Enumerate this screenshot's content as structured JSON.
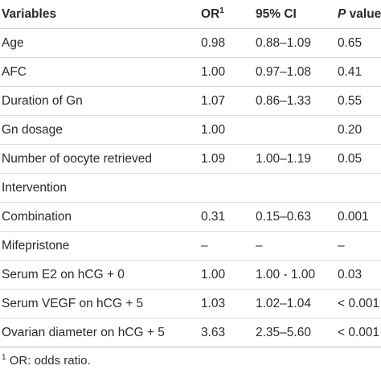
{
  "headers": {
    "variables": "Variables",
    "or": "OR",
    "or_sup": "1",
    "ci": "95% CI",
    "p_italic": "P",
    "p_rest": " value"
  },
  "rows": [
    {
      "variable": "Age",
      "or": "0.98",
      "ci": "0.88–1.09",
      "p": "0.65"
    },
    {
      "variable": "AFC",
      "or": "1.00",
      "ci": "0.97–1.08",
      "p": "0.41"
    },
    {
      "variable": "Duration of Gn",
      "or": "1.07",
      "ci": "0.86–1.33",
      "p": "0.55"
    },
    {
      "variable": "Gn dosage",
      "or": "1.00",
      "ci": "",
      "p": "0.20"
    },
    {
      "variable": "Number of oocyte retrieved",
      "or": "1.09",
      "ci": "1.00–1.19",
      "p": "0.05"
    },
    {
      "variable": "Intervention",
      "or": "",
      "ci": "",
      "p": ""
    },
    {
      "variable": "Combination",
      "or": "0.31",
      "ci": "0.15–0.63",
      "p": "0.001"
    },
    {
      "variable": "Mifepristone",
      "or": "–",
      "ci": "–",
      "p": "–"
    },
    {
      "variable": "Serum E2 on hCG + 0",
      "or": "1.00",
      "ci": "1.00 - 1.00",
      "p": "0.03"
    },
    {
      "variable": "Serum VEGF on hCG + 5",
      "or": "1.03",
      "ci": "1.02–1.04",
      "p": "< 0.001"
    },
    {
      "variable": "Ovarian diameter on hCG + 5",
      "or": "3.63",
      "ci": "2.35–5.60",
      "p": "< 0.001"
    }
  ],
  "footnote": {
    "marker": "1",
    "text": " OR: odds ratio."
  }
}
